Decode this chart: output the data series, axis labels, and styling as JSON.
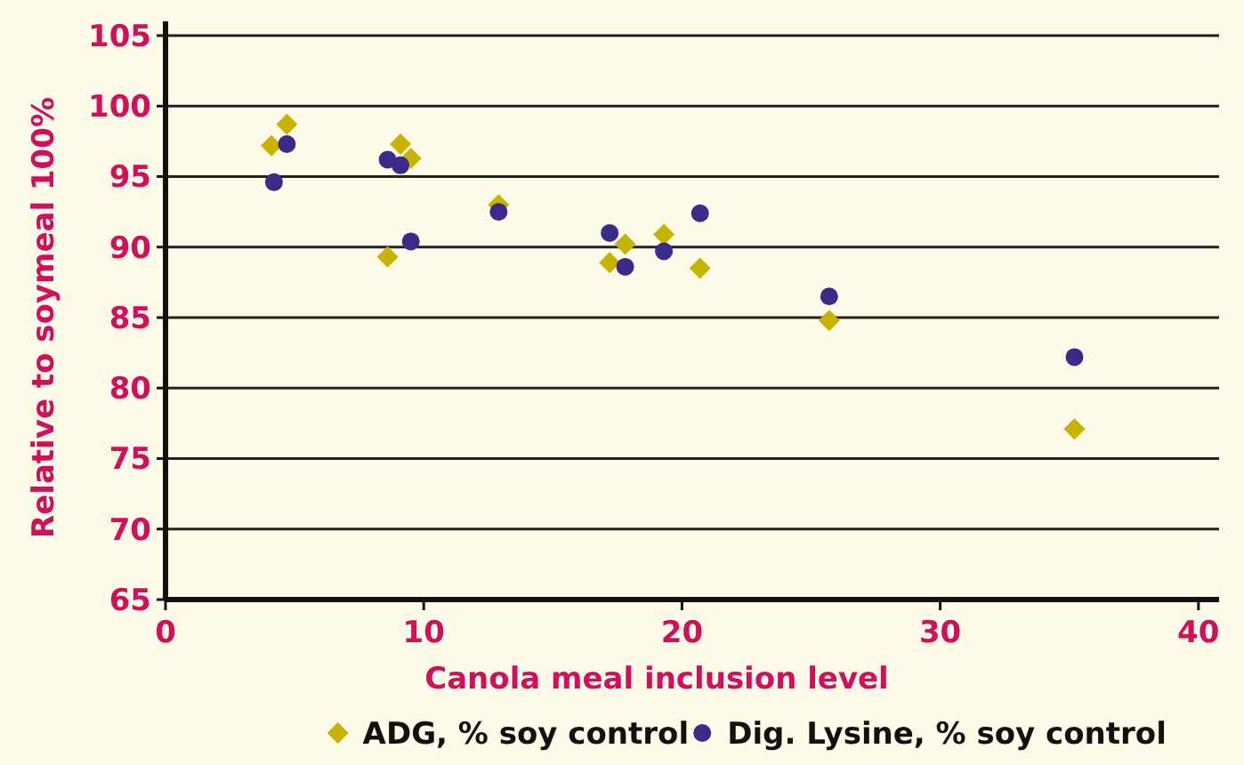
{
  "chart_data": {
    "type": "scatter",
    "xlabel": "Canola meal inclusion level",
    "ylabel": "Relative to soymeal 100%",
    "xlim": [
      0,
      40.8
    ],
    "xticks": [
      0,
      10,
      20,
      30,
      40
    ],
    "ylim": [
      65,
      105
    ],
    "yticks": [
      65,
      70,
      75,
      80,
      85,
      90,
      95,
      100,
      105
    ],
    "grid": "y",
    "legend": "bottom",
    "series": [
      {
        "name": "ADG, % soy control",
        "color": "#c8b400",
        "marker": "diamond",
        "x": [
          4.1,
          4.7,
          9.1,
          9.5,
          8.6,
          12.9,
          17.2,
          17.8,
          19.3,
          20.7,
          25.7,
          35.2
        ],
        "values": [
          97.2,
          98.7,
          97.3,
          96.3,
          89.3,
          93,
          88.9,
          90.2,
          90.9,
          88.5,
          84.8,
          77.1
        ]
      },
      {
        "name": "Dig. Lysine, % soy control",
        "color": "#3a2a8a",
        "marker": "circle",
        "x": [
          4.2,
          4.7,
          8.6,
          9.1,
          9.5,
          12.9,
          17.2,
          17.8,
          19.3,
          20.7,
          25.7,
          35.2
        ],
        "values": [
          94.6,
          97.3,
          96.2,
          95.8,
          90.4,
          92.5,
          91,
          88.6,
          89.7,
          92.4,
          86.5,
          82.2
        ]
      }
    ]
  }
}
